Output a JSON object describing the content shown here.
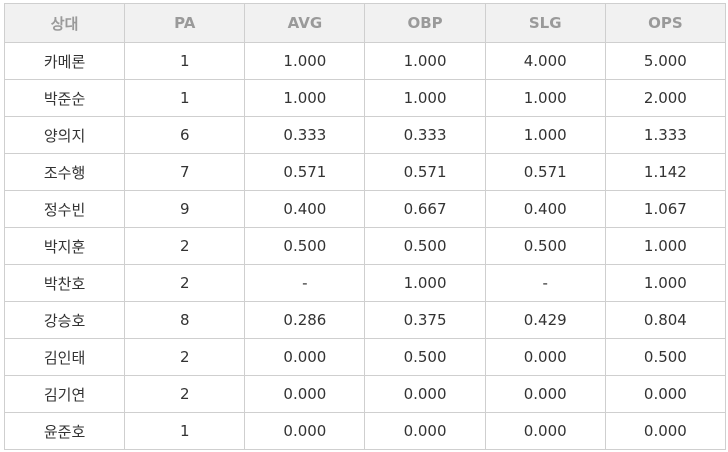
{
  "table": {
    "header": [
      "상대",
      "PA",
      "AVG",
      "OBP",
      "SLG",
      "OPS"
    ],
    "rows": [
      [
        "카메론",
        "1",
        "1.000",
        "1.000",
        "4.000",
        "5.000"
      ],
      [
        "박준순",
        "1",
        "1.000",
        "1.000",
        "1.000",
        "2.000"
      ],
      [
        "양의지",
        "6",
        "0.333",
        "0.333",
        "1.000",
        "1.333"
      ],
      [
        "조수행",
        "7",
        "0.571",
        "0.571",
        "0.571",
        "1.142"
      ],
      [
        "정수빈",
        "9",
        "0.400",
        "0.667",
        "0.400",
        "1.067"
      ],
      [
        "박지훈",
        "2",
        "0.500",
        "0.500",
        "0.500",
        "1.000"
      ],
      [
        "박찬호",
        "2",
        "-",
        "1.000",
        "-",
        "1.000"
      ],
      [
        "강승호",
        "8",
        "0.286",
        "0.375",
        "0.429",
        "0.804"
      ],
      [
        "김인태",
        "2",
        "0.000",
        "0.500",
        "0.000",
        "0.500"
      ],
      [
        "김기연",
        "2",
        "0.000",
        "0.000",
        "0.000",
        "0.000"
      ],
      [
        "윤준호",
        "1",
        "0.000",
        "0.000",
        "0.000",
        "0.000"
      ]
    ]
  }
}
